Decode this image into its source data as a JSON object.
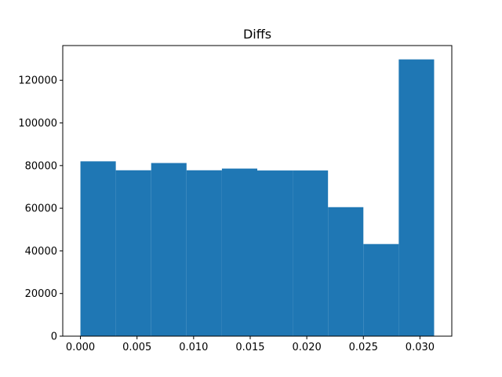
{
  "chart_data": {
    "type": "bar",
    "title": "Diffs",
    "xlabel": "",
    "ylabel": "",
    "bins": [
      {
        "x0": 0.0,
        "x1": 0.003125,
        "value": 82000
      },
      {
        "x0": 0.003125,
        "x1": 0.00625,
        "value": 77800
      },
      {
        "x0": 0.00625,
        "x1": 0.009375,
        "value": 81200
      },
      {
        "x0": 0.009375,
        "x1": 0.0125,
        "value": 77800
      },
      {
        "x0": 0.0125,
        "x1": 0.015625,
        "value": 78600
      },
      {
        "x0": 0.015625,
        "x1": 0.01875,
        "value": 77700
      },
      {
        "x0": 0.01875,
        "x1": 0.021875,
        "value": 77700
      },
      {
        "x0": 0.021875,
        "x1": 0.025,
        "value": 60500
      },
      {
        "x0": 0.025,
        "x1": 0.028125,
        "value": 43200
      },
      {
        "x0": 0.028125,
        "x1": 0.03125,
        "value": 129800
      }
    ],
    "xlim": [
      -0.0015625,
      0.0328125
    ],
    "ylim": [
      0,
      136290
    ],
    "xticks": [
      0.0,
      0.005,
      0.01,
      0.015,
      0.02,
      0.025,
      0.03
    ],
    "xtick_labels": [
      "0.000",
      "0.005",
      "0.010",
      "0.015",
      "0.020",
      "0.025",
      "0.030"
    ],
    "yticks": [
      0,
      20000,
      40000,
      60000,
      80000,
      100000,
      120000
    ],
    "ytick_labels": [
      "0",
      "20000",
      "40000",
      "60000",
      "80000",
      "100000",
      "120000"
    ],
    "bar_color": "#1f77b4",
    "grid": false,
    "legend": "none"
  }
}
